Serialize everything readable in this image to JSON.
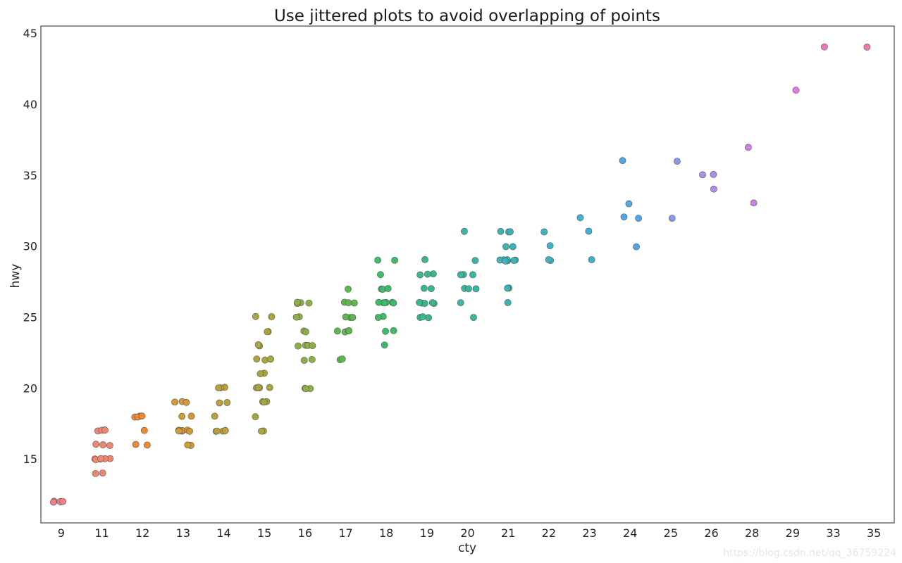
{
  "chart_data": {
    "type": "scatter",
    "title": "Use jittered plots to avoid overlapping of points",
    "xlabel": "cty",
    "ylabel": "hwy",
    "x_categories": [
      "9",
      "11",
      "12",
      "13",
      "14",
      "15",
      "16",
      "17",
      "18",
      "19",
      "20",
      "21",
      "22",
      "23",
      "24",
      "25",
      "26",
      "28",
      "29",
      "33",
      "35"
    ],
    "ylim": [
      10.5,
      45.5
    ],
    "yticks": [
      15,
      20,
      25,
      30,
      35,
      40,
      45
    ],
    "grid": false,
    "colors": {
      "9": "#f07f8c",
      "11": "#f0866f",
      "12": "#ee8a30",
      "13": "#d09a34",
      "14": "#bba13a",
      "15": "#a9a63e",
      "16": "#8db044",
      "17": "#5bb84a",
      "18": "#3dbd6a",
      "19": "#3ab88c",
      "20": "#38b7a0",
      "21": "#39b5b7",
      "22": "#3cb4c4",
      "23": "#40b1d2",
      "24": "#4fa7e6",
      "25": "#8c9ae6",
      "26": "#aa8ee8",
      "28": "#d17ee8",
      "29": "#e679e0",
      "33": "#ee74c6",
      "35": "#f075b0"
    },
    "points": [
      [
        "9",
        12
      ],
      [
        "9",
        12
      ],
      [
        "9",
        12
      ],
      [
        "9",
        12
      ],
      [
        "9",
        12
      ],
      [
        "11",
        17
      ],
      [
        "11",
        17
      ],
      [
        "11",
        17
      ],
      [
        "11",
        17
      ],
      [
        "11",
        16
      ],
      [
        "11",
        16
      ],
      [
        "11",
        16
      ],
      [
        "11",
        15
      ],
      [
        "11",
        15
      ],
      [
        "11",
        15
      ],
      [
        "11",
        15
      ],
      [
        "11",
        15
      ],
      [
        "11",
        15
      ],
      [
        "11",
        14
      ],
      [
        "11",
        14
      ],
      [
        "12",
        18
      ],
      [
        "12",
        18
      ],
      [
        "12",
        18
      ],
      [
        "12",
        18
      ],
      [
        "12",
        17
      ],
      [
        "12",
        16
      ],
      [
        "12",
        16
      ],
      [
        "13",
        19
      ],
      [
        "13",
        19
      ],
      [
        "13",
        19
      ],
      [
        "13",
        18
      ],
      [
        "13",
        18
      ],
      [
        "13",
        17
      ],
      [
        "13",
        17
      ],
      [
        "13",
        17
      ],
      [
        "13",
        17
      ],
      [
        "13",
        17
      ],
      [
        "13",
        17
      ],
      [
        "13",
        16
      ],
      [
        "13",
        16
      ],
      [
        "14",
        20
      ],
      [
        "14",
        20
      ],
      [
        "14",
        20
      ],
      [
        "14",
        19
      ],
      [
        "14",
        19
      ],
      [
        "14",
        18
      ],
      [
        "14",
        17
      ],
      [
        "14",
        17
      ],
      [
        "14",
        17
      ],
      [
        "14",
        17
      ],
      [
        "14",
        17
      ],
      [
        "15",
        25
      ],
      [
        "15",
        25
      ],
      [
        "15",
        24
      ],
      [
        "15",
        24
      ],
      [
        "15",
        23
      ],
      [
        "15",
        23
      ],
      [
        "15",
        22
      ],
      [
        "15",
        22
      ],
      [
        "15",
        22
      ],
      [
        "15",
        21
      ],
      [
        "15",
        21
      ],
      [
        "15",
        20
      ],
      [
        "15",
        20
      ],
      [
        "15",
        20
      ],
      [
        "15",
        20
      ],
      [
        "15",
        19
      ],
      [
        "15",
        19
      ],
      [
        "15",
        19
      ],
      [
        "15",
        18
      ],
      [
        "15",
        17
      ],
      [
        "15",
        17
      ],
      [
        "16",
        26
      ],
      [
        "16",
        26
      ],
      [
        "16",
        26
      ],
      [
        "16",
        26
      ],
      [
        "16",
        25
      ],
      [
        "16",
        25
      ],
      [
        "16",
        24
      ],
      [
        "16",
        24
      ],
      [
        "16",
        23
      ],
      [
        "16",
        23
      ],
      [
        "16",
        23
      ],
      [
        "16",
        23
      ],
      [
        "16",
        22
      ],
      [
        "16",
        22
      ],
      [
        "16",
        20
      ],
      [
        "16",
        20
      ],
      [
        "16",
        20
      ],
      [
        "17",
        27
      ],
      [
        "17",
        26
      ],
      [
        "17",
        26
      ],
      [
        "17",
        26
      ],
      [
        "17",
        25
      ],
      [
        "17",
        25
      ],
      [
        "17",
        25
      ],
      [
        "17",
        24
      ],
      [
        "17",
        24
      ],
      [
        "17",
        24
      ],
      [
        "17",
        24
      ],
      [
        "17",
        22
      ],
      [
        "17",
        22
      ],
      [
        "18",
        29
      ],
      [
        "18",
        29
      ],
      [
        "18",
        28
      ],
      [
        "18",
        27
      ],
      [
        "18",
        27
      ],
      [
        "18",
        27
      ],
      [
        "18",
        26
      ],
      [
        "18",
        26
      ],
      [
        "18",
        26
      ],
      [
        "18",
        26
      ],
      [
        "18",
        26
      ],
      [
        "18",
        26
      ],
      [
        "18",
        25
      ],
      [
        "18",
        25
      ],
      [
        "18",
        24
      ],
      [
        "18",
        24
      ],
      [
        "18",
        23
      ],
      [
        "19",
        29
      ],
      [
        "19",
        28
      ],
      [
        "19",
        28
      ],
      [
        "19",
        28
      ],
      [
        "19",
        27
      ],
      [
        "19",
        27
      ],
      [
        "19",
        26
      ],
      [
        "19",
        26
      ],
      [
        "19",
        26
      ],
      [
        "19",
        26
      ],
      [
        "19",
        26
      ],
      [
        "19",
        25
      ],
      [
        "19",
        25
      ],
      [
        "19",
        25
      ],
      [
        "20",
        31
      ],
      [
        "20",
        29
      ],
      [
        "20",
        28
      ],
      [
        "20",
        28
      ],
      [
        "20",
        28
      ],
      [
        "20",
        27
      ],
      [
        "20",
        27
      ],
      [
        "20",
        27
      ],
      [
        "20",
        26
      ],
      [
        "20",
        25
      ],
      [
        "21",
        31
      ],
      [
        "21",
        31
      ],
      [
        "21",
        31
      ],
      [
        "21",
        30
      ],
      [
        "21",
        30
      ],
      [
        "21",
        29
      ],
      [
        "21",
        29
      ],
      [
        "21",
        29
      ],
      [
        "21",
        29
      ],
      [
        "21",
        29
      ],
      [
        "21",
        29
      ],
      [
        "21",
        29
      ],
      [
        "21",
        27
      ],
      [
        "21",
        27
      ],
      [
        "21",
        26
      ],
      [
        "22",
        31
      ],
      [
        "22",
        30
      ],
      [
        "22",
        29
      ],
      [
        "22",
        29
      ],
      [
        "23",
        32
      ],
      [
        "23",
        31
      ],
      [
        "23",
        29
      ],
      [
        "24",
        36
      ],
      [
        "24",
        33
      ],
      [
        "24",
        32
      ],
      [
        "24",
        32
      ],
      [
        "24",
        30
      ],
      [
        "25",
        36
      ],
      [
        "25",
        32
      ],
      [
        "26",
        35
      ],
      [
        "26",
        35
      ],
      [
        "26",
        34
      ],
      [
        "28",
        37
      ],
      [
        "28",
        33
      ],
      [
        "29",
        41
      ],
      [
        "33",
        44
      ],
      [
        "35",
        44
      ]
    ]
  },
  "watermark": "https://blog.csdn.net/qq_36759224"
}
